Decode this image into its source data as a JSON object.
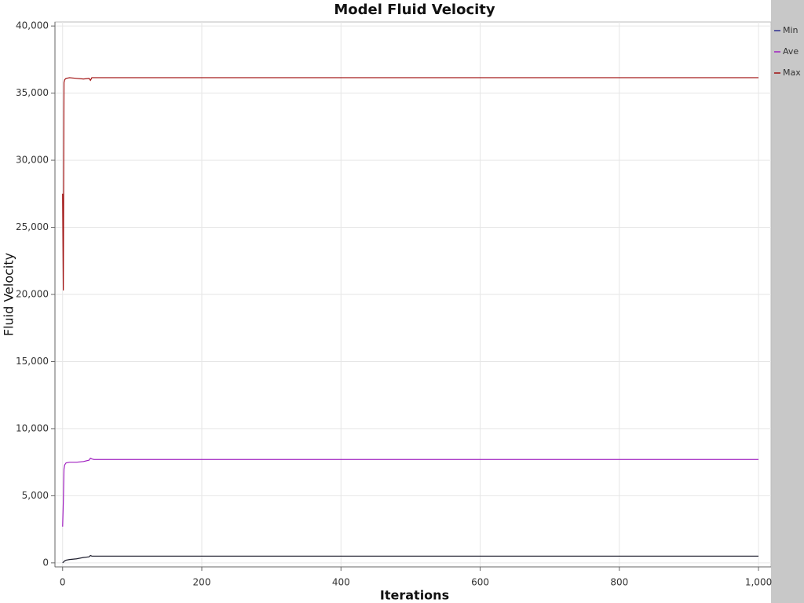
{
  "chart_data": {
    "type": "line",
    "title": "Model Fluid Velocity",
    "x_label": "Iterations",
    "y_label": "Fluid Velocity",
    "x": [
      0,
      1,
      2,
      3,
      5,
      10,
      20,
      30,
      38,
      40,
      42,
      45,
      50,
      100,
      200,
      300,
      400,
      500,
      600,
      700,
      800,
      900,
      1000
    ],
    "series": [
      {
        "name": "Min",
        "color": "#1c1c2c",
        "legend_color": "#303090",
        "values": [
          0,
          50,
          100,
          150,
          200,
          250,
          300,
          400,
          450,
          550,
          500,
          500,
          500,
          500,
          500,
          500,
          500,
          500,
          500,
          500,
          500,
          500,
          500
        ]
      },
      {
        "name": "Ave",
        "color": "#a020c0",
        "values": [
          2700,
          4500,
          7000,
          7300,
          7450,
          7500,
          7500,
          7550,
          7650,
          7800,
          7750,
          7700,
          7700,
          7700,
          7700,
          7700,
          7700,
          7700,
          7700,
          7700,
          7700,
          7700,
          7700
        ]
      },
      {
        "name": "Max",
        "color": "#a01010",
        "values": [
          27500,
          20300,
          35800,
          36000,
          36100,
          36150,
          36100,
          36050,
          36100,
          35950,
          36150,
          36150,
          36150,
          36150,
          36150,
          36150,
          36150,
          36150,
          36150,
          36150,
          36150,
          36150,
          36150
        ]
      }
    ],
    "xlim": [
      -11,
      1018
    ],
    "ylim": [
      -300,
      40300
    ],
    "xticks": [
      0,
      200,
      400,
      600,
      800,
      {
        "value": 1000,
        "label": "1,000"
      }
    ],
    "yticks": [
      0,
      {
        "value": 5000,
        "label": "5,000"
      },
      {
        "value": 10000,
        "label": "10,000"
      },
      {
        "value": 15000,
        "label": "15,000"
      },
      {
        "value": 20000,
        "label": "20,000"
      },
      {
        "value": 25000,
        "label": "25,000"
      },
      {
        "value": 30000,
        "label": "30,000"
      },
      {
        "value": 35000,
        "label": "35,000"
      },
      {
        "value": 40000,
        "label": "40,000"
      }
    ],
    "grid": true,
    "legend_position": "right"
  }
}
